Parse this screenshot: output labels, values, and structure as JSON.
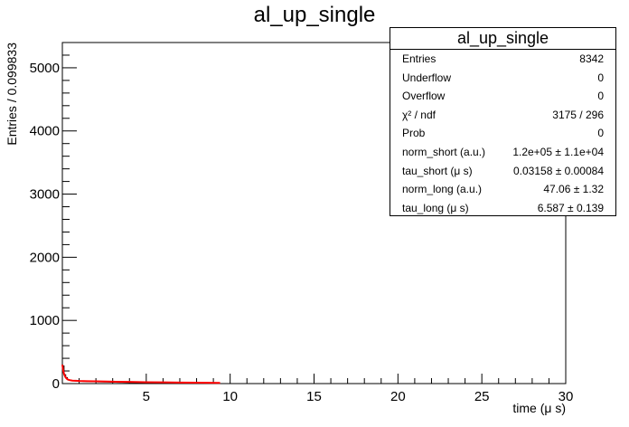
{
  "chart_data": {
    "type": "line",
    "title": "al_up_single",
    "xlabel": "time (μ s)",
    "ylabel": "Entries / 0.099833",
    "xlim": [
      0,
      30
    ],
    "ylim": [
      0,
      5400
    ],
    "x_ticks": [
      5,
      10,
      15,
      20,
      25,
      30
    ],
    "y_ticks": [
      0,
      1000,
      2000,
      3000,
      4000,
      5000
    ],
    "grid": false,
    "legend": "top-right",
    "colors": {
      "histogram": "#000000",
      "fit": "#ff0000"
    },
    "series": [
      {
        "x": [
          0.05,
          0.15,
          0.25,
          0.35,
          0.45,
          0.55,
          0.65,
          0.75,
          0.85,
          0.95,
          1.1,
          1.3,
          1.5,
          1.8,
          2.2,
          2.6,
          3.0,
          3.5,
          4.0,
          4.5,
          5.0,
          6.0,
          7.0,
          8.0,
          9.0
        ],
        "values": [
          280,
          140,
          95,
          65,
          55,
          48,
          44,
          42,
          40,
          38,
          36,
          34,
          32,
          30,
          27,
          25,
          22,
          20,
          17,
          15,
          13,
          10,
          7,
          5,
          3
        ]
      },
      {
        "x": [
          0.0,
          0.05,
          0.1,
          0.15,
          0.2,
          0.3,
          0.4,
          0.6,
          0.8,
          1.0,
          1.5,
          2.0,
          3.0,
          4.0,
          5.0,
          6.0,
          7.0,
          8.0,
          9.4
        ],
        "values": [
          300,
          210,
          155,
          120,
          95,
          68,
          56,
          47,
          44,
          41,
          38,
          35,
          30,
          26,
          22,
          19,
          16,
          14,
          11
        ]
      }
    ]
  },
  "stats": {
    "title": "al_up_single",
    "rows": [
      {
        "label": "Entries",
        "value": "8342"
      },
      {
        "label": "Underflow",
        "value": "0"
      },
      {
        "label": "Overflow",
        "value": "0"
      },
      {
        "label": "χ² / ndf",
        "value": "3175 / 296"
      },
      {
        "label": "Prob",
        "value": "0"
      },
      {
        "label": "norm_short (a.u.)",
        "value": "1.2e+05 ± 1.1e+04"
      },
      {
        "label": "tau_short (μ s)",
        "value": "0.03158 ± 0.00084"
      },
      {
        "label": "norm_long (a.u.)",
        "value": "47.06 ± 1.32"
      },
      {
        "label": "tau_long (μ s)",
        "value": "6.587 ± 0.139"
      }
    ]
  }
}
